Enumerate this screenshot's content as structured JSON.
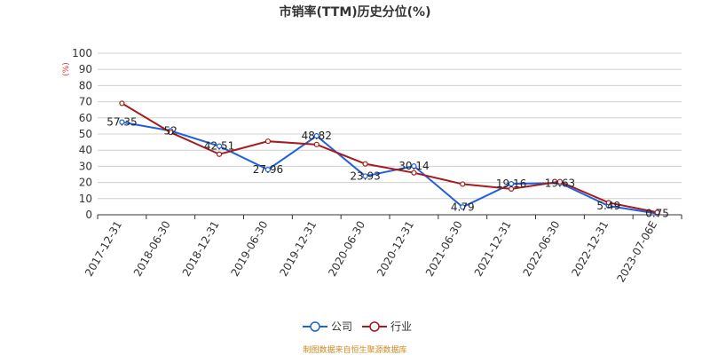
{
  "chart_data": {
    "type": "line",
    "title": "市销率(TTM)历史分位(%)",
    "ylabel": "(%)",
    "xlabel": "",
    "ylim": [
      0,
      100
    ],
    "yticks": [
      0,
      10,
      20,
      30,
      40,
      50,
      60,
      70,
      80,
      90,
      100
    ],
    "grid": true,
    "legend_position": "bottom",
    "categories": [
      "2017-12-31",
      "2018-06-30",
      "2018-12-31",
      "2019-06-30",
      "2019-12-31",
      "2020-06-30",
      "2020-12-31",
      "2021-06-30",
      "2021-12-31",
      "2022-06-30",
      "2022-12-31",
      "2023-07-06E"
    ],
    "series": [
      {
        "name": "公司",
        "color": "#1f5fe0",
        "values": [
          57.35,
          52,
          42.51,
          27.96,
          48.82,
          23.93,
          30.14,
          4.79,
          19.16,
          19.63,
          5.49,
          0.75
        ],
        "data_labels": [
          "57.35",
          "52",
          "42.51",
          "27.96",
          "48.82",
          "23.93",
          "30.14",
          "4.79",
          "19.16",
          "19.63",
          "5.49",
          "0.75"
        ]
      },
      {
        "name": "行业",
        "color": "#a51c1c",
        "values": [
          69,
          51,
          37.5,
          45.5,
          43.5,
          31.5,
          26,
          19,
          16,
          20.5,
          7.5,
          1.5
        ]
      }
    ]
  },
  "footer": {
    "source": "制图数据来自恒生聚源数据库"
  }
}
